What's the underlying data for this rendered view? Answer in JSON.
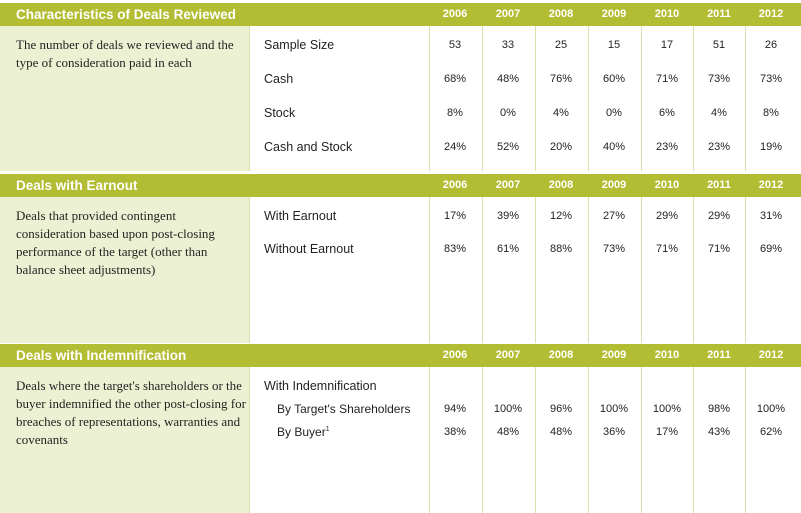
{
  "years": [
    "2006",
    "2007",
    "2008",
    "2009",
    "2010",
    "2011",
    "2012"
  ],
  "sections": [
    {
      "title": "Characteristics of Deals Reviewed",
      "description": "The number of deals we reviewed and the type of consideration paid in each",
      "rows": [
        {
          "label": "Sample Size",
          "values": [
            "53",
            "33",
            "25",
            "15",
            "17",
            "51",
            "26"
          ]
        },
        {
          "label": "Cash",
          "values": [
            "68%",
            "48%",
            "76%",
            "60%",
            "71%",
            "73%",
            "73%"
          ]
        },
        {
          "label": "Stock",
          "values": [
            "8%",
            "0%",
            "4%",
            "0%",
            "6%",
            "4%",
            "8%"
          ]
        },
        {
          "label": "Cash and Stock",
          "values": [
            "24%",
            "52%",
            "20%",
            "40%",
            "23%",
            "23%",
            "19%"
          ]
        }
      ]
    },
    {
      "title": "Deals with Earnout",
      "description": "Deals that provided contingent consideration based upon post-closing performance of the target (other than balance sheet adjustments)",
      "rows": [
        {
          "label": "With Earnout",
          "values": [
            "17%",
            "39%",
            "12%",
            "27%",
            "29%",
            "29%",
            "31%"
          ]
        },
        {
          "label": "Without Earnout",
          "values": [
            "83%",
            "61%",
            "88%",
            "73%",
            "71%",
            "71%",
            "69%"
          ]
        }
      ]
    },
    {
      "title": "Deals with Indemnification",
      "description": "Deals where the target's shareholders or the buyer indemnified the other post-closing for breaches of representations, warranties and covenants",
      "group_label": "With Indemnification",
      "rows": [
        {
          "label": "By Target's Shareholders",
          "values": [
            "94%",
            "100%",
            "96%",
            "100%",
            "100%",
            "98%",
            "100%"
          ]
        },
        {
          "label": "By Buyer",
          "footnote": "1",
          "values": [
            "38%",
            "48%",
            "48%",
            "36%",
            "17%",
            "43%",
            "62%"
          ]
        }
      ]
    }
  ]
}
